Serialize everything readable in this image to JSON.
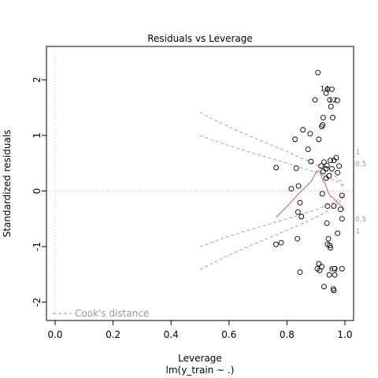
{
  "chart_data": {
    "type": "scatter",
    "title": "Residuals vs Leverage",
    "xlabel": "Leverage",
    "sublabel": "lm(y_train ~ .)",
    "ylabel": "Standardized residuals",
    "xlim": [
      -0.03,
      1.03
    ],
    "ylim": [
      -2.33,
      2.6
    ],
    "xticks": [
      "0.0",
      "0.2",
      "0.4",
      "0.6",
      "0.8",
      "1.0"
    ],
    "xtick_values": [
      0.0,
      0.2,
      0.4,
      0.6,
      0.8,
      1.0
    ],
    "yticks": [
      "-2",
      "-1",
      "0",
      "1",
      "2"
    ],
    "ytick_values": [
      -2,
      -1,
      0,
      1,
      2
    ],
    "points": [
      [
        0.907,
        2.13
      ],
      [
        0.94,
        1.83
      ],
      [
        0.955,
        1.83
      ],
      [
        0.935,
        1.76
      ],
      [
        0.897,
        1.64
      ],
      [
        0.948,
        1.64
      ],
      [
        0.974,
        1.63
      ],
      [
        0.952,
        1.52
      ],
      [
        0.925,
        1.32
      ],
      [
        0.958,
        1.32
      ],
      [
        0.855,
        1.1
      ],
      [
        0.923,
        1.19
      ],
      [
        0.92,
        1.16
      ],
      [
        0.88,
        1.03
      ],
      [
        0.828,
        0.93
      ],
      [
        0.91,
        0.93
      ],
      [
        0.873,
        0.75
      ],
      [
        0.95,
        0.55
      ],
      [
        0.928,
        0.52
      ],
      [
        0.962,
        0.55
      ],
      [
        0.97,
        0.6
      ],
      [
        0.918,
        0.45
      ],
      [
        0.883,
        0.53
      ],
      [
        0.938,
        0.46
      ],
      [
        0.935,
        0.4
      ],
      [
        0.98,
        0.45
      ],
      [
        0.955,
        0.4
      ],
      [
        0.925,
        0.35
      ],
      [
        0.975,
        0.33
      ],
      [
        0.945,
        0.27
      ],
      [
        0.935,
        0.23
      ],
      [
        0.763,
        0.42
      ],
      [
        0.832,
        0.41
      ],
      [
        0.84,
        0.09
      ],
      [
        0.815,
        0.04
      ],
      [
        0.922,
        -0.05
      ],
      [
        0.99,
        -0.08
      ],
      [
        0.845,
        -0.21
      ],
      [
        0.94,
        -0.27
      ],
      [
        0.962,
        -0.27
      ],
      [
        0.985,
        -0.33
      ],
      [
        0.838,
        -0.38
      ],
      [
        0.85,
        -0.46
      ],
      [
        0.938,
        -0.58
      ],
      [
        0.975,
        -0.76
      ],
      [
        0.943,
        -0.86
      ],
      [
        0.836,
        -0.86
      ],
      [
        0.94,
        -0.96
      ],
      [
        0.948,
        -0.98
      ],
      [
        0.95,
        -1.02
      ],
      [
        0.762,
        -0.96
      ],
      [
        0.78,
        -0.93
      ],
      [
        0.91,
        -1.31
      ],
      [
        0.905,
        -1.4
      ],
      [
        0.913,
        -1.43
      ],
      [
        0.92,
        -1.36
      ],
      [
        0.99,
        -1.4
      ],
      [
        0.965,
        -1.4
      ],
      [
        0.946,
        -1.51
      ],
      [
        0.965,
        -1.51
      ],
      [
        0.845,
        -1.46
      ],
      [
        0.928,
        -1.72
      ],
      [
        0.96,
        -1.76
      ],
      [
        0.962,
        -1.79
      ],
      [
        0.99,
        -0.5
      ]
    ],
    "point_labels": [
      {
        "text": "14",
        "x": 0.93,
        "y": 1.84
      },
      {
        "text": "12",
        "x": 0.958,
        "y": 1.64
      },
      {
        "text": "62",
        "x": 0.961,
        "y": -1.4
      }
    ],
    "smooth_line": {
      "color": "#DF536B",
      "points": [
        [
          0.763,
          -0.47
        ],
        [
          0.8,
          -0.28
        ],
        [
          0.84,
          -0.05
        ],
        [
          0.86,
          0.05
        ],
        [
          0.885,
          0.18
        ],
        [
          0.902,
          0.36
        ],
        [
          0.912,
          0.36
        ],
        [
          0.925,
          0.18
        ],
        [
          0.932,
          0.13
        ],
        [
          0.94,
          0.01
        ],
        [
          0.95,
          -0.1
        ],
        [
          0.96,
          -0.12
        ],
        [
          0.975,
          -0.22
        ],
        [
          0.99,
          -0.27
        ],
        [
          0.998,
          -0.35
        ]
      ]
    },
    "cooks_contour_labels": [
      {
        "text": "1",
        "x": 1.045,
        "y": 0.7
      },
      {
        "text": "0.5",
        "x": 1.055,
        "y": 0.49
      },
      {
        "text": "0.5",
        "x": 1.055,
        "y": -0.5
      },
      {
        "text": "1",
        "x": 1.045,
        "y": -0.72
      }
    ],
    "legend": {
      "text": "Cook's distance",
      "position": "bottom-left"
    },
    "grid": false
  }
}
